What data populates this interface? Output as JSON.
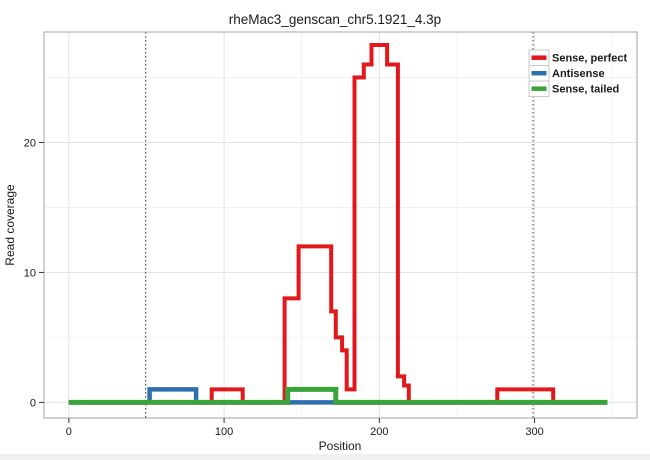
{
  "chart_data": {
    "type": "line",
    "title": "rheMac3_genscan_chr5.1921_4.3p",
    "xlabel": "Position",
    "ylabel": "Read coverage",
    "xlim": [
      -16,
      366
    ],
    "ylim": [
      -1.2,
      28.5
    ],
    "x_ticks": [
      0,
      100,
      200,
      300
    ],
    "x_tick_labels": [
      "0",
      "100",
      "200",
      "300"
    ],
    "x_minor_ticks": [
      50,
      150,
      250,
      350
    ],
    "y_ticks": [
      0,
      10,
      20
    ],
    "y_tick_labels": [
      "0",
      "10",
      "20"
    ],
    "y_minor_ticks": [
      5,
      15,
      25
    ],
    "grid": "major+minor",
    "legend_position": "top-right-inside",
    "dotted_vlines": [
      49.5,
      299
    ],
    "colors": {
      "sense_perfect": "#e2191c",
      "antisense": "#2e6fad",
      "sense_tailed": "#3aa43a",
      "grid_major": "#e3e3e3",
      "grid_minor": "#f2f2f2",
      "panel_border": "#a3a3a3",
      "guide_line": "#3a3a3a"
    },
    "series": [
      {
        "name": "Sense, perfect",
        "color": "#e2191c",
        "points": [
          [
            0,
            0
          ],
          [
            92,
            0
          ],
          [
            92,
            1
          ],
          [
            112,
            1
          ],
          [
            112,
            0
          ],
          [
            139,
            0
          ],
          [
            139,
            8
          ],
          [
            148,
            8
          ],
          [
            148,
            12
          ],
          [
            169,
            12
          ],
          [
            169,
            7
          ],
          [
            172,
            7
          ],
          [
            172,
            5
          ],
          [
            176,
            5
          ],
          [
            176,
            4
          ],
          [
            179,
            4
          ],
          [
            179,
            1
          ],
          [
            184,
            1
          ],
          [
            184,
            25
          ],
          [
            190,
            25
          ],
          [
            190,
            26
          ],
          [
            195,
            26
          ],
          [
            195,
            27.5
          ],
          [
            205,
            27.5
          ],
          [
            205,
            26
          ],
          [
            212,
            26
          ],
          [
            212,
            2
          ],
          [
            216,
            2
          ],
          [
            216,
            1.3
          ],
          [
            219,
            1.3
          ],
          [
            219,
            0
          ],
          [
            276,
            0
          ],
          [
            276,
            1
          ],
          [
            312,
            1
          ],
          [
            312,
            0
          ],
          [
            347,
            0
          ]
        ]
      },
      {
        "name": "Antisense",
        "color": "#2e6fad",
        "points": [
          [
            0,
            0
          ],
          [
            52,
            0
          ],
          [
            52,
            1
          ],
          [
            82,
            1
          ],
          [
            82,
            0
          ],
          [
            347,
            0
          ]
        ]
      },
      {
        "name": "Sense, tailed",
        "color": "#3aa43a",
        "points": [
          [
            0,
            0
          ],
          [
            141,
            0
          ],
          [
            141,
            1
          ],
          [
            172,
            1
          ],
          [
            172,
            0
          ],
          [
            347,
            0
          ]
        ]
      }
    ]
  }
}
